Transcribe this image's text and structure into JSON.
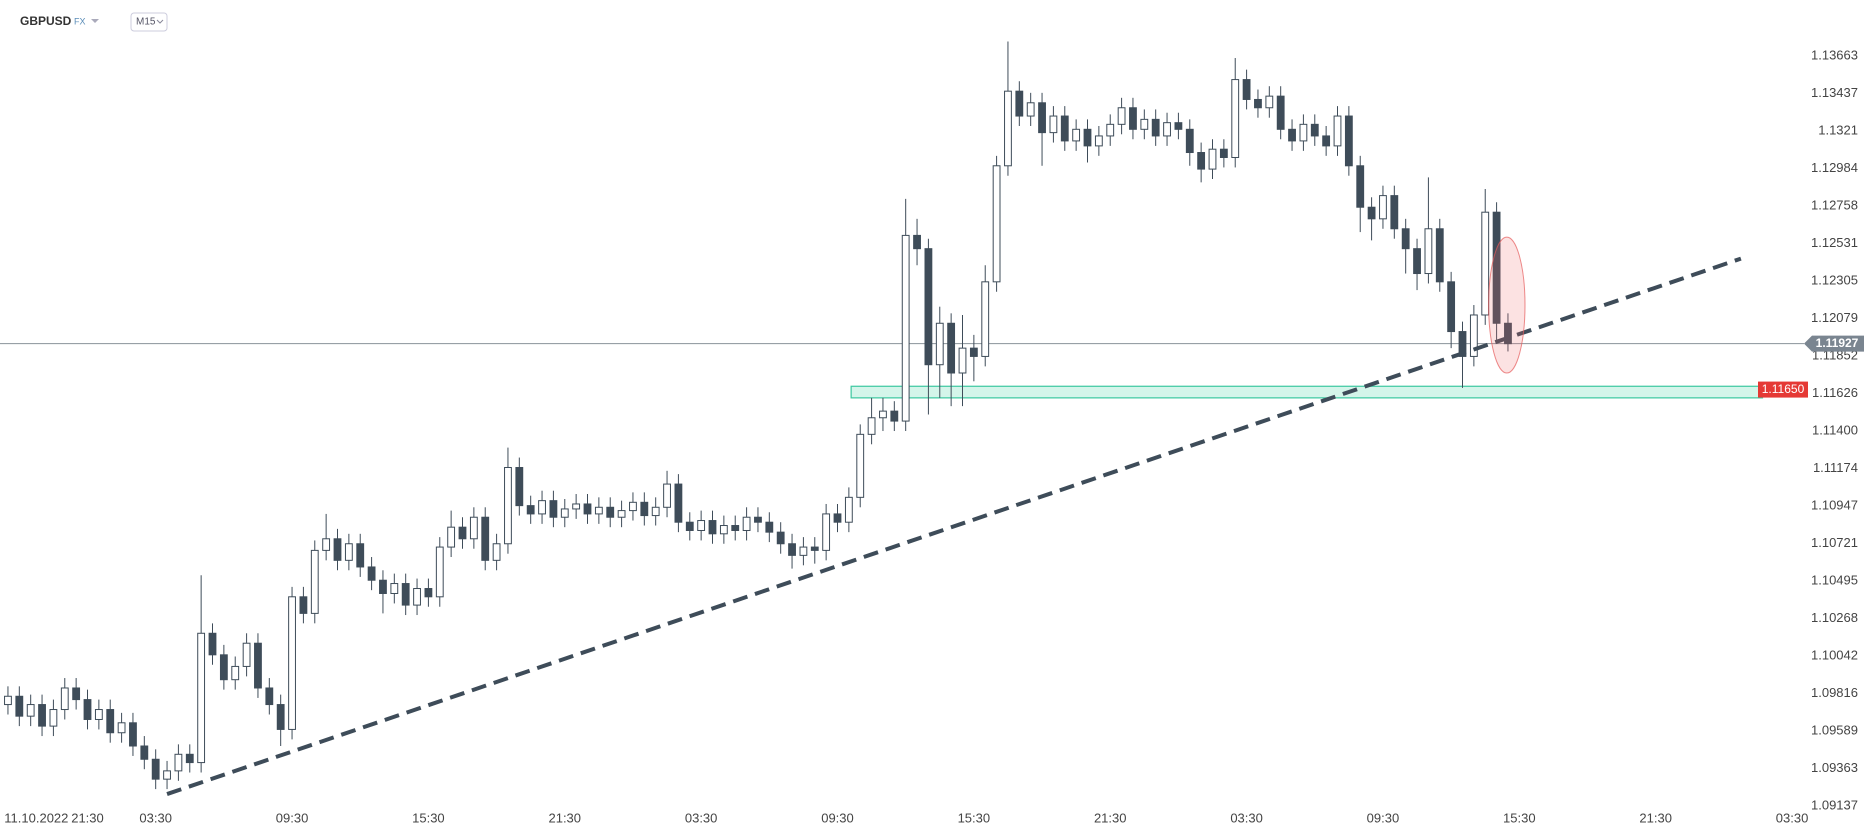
{
  "chart_data": {
    "type": "candlestick",
    "symbol": "GBPUSD",
    "market": "FX",
    "timeframe": "M15",
    "up_color": "#ffffff",
    "down_color": "#3e4c59",
    "line_color": "#3e4c59",
    "open": [
      1.0975,
      1.098,
      1.0968,
      1.0975,
      1.0962,
      1.0972,
      1.0985,
      1.0978,
      1.0966,
      1.0972,
      1.0958,
      1.0964,
      1.095,
      1.0942,
      1.093,
      1.0935,
      1.0945,
      1.094,
      1.1018,
      1.1005,
      1.099,
      1.0998,
      1.1012,
      1.0985,
      1.0975,
      1.096,
      1.104,
      1.103,
      1.1068,
      1.1075,
      1.1062,
      1.1072,
      1.1058,
      1.105,
      1.1042,
      1.1048,
      1.1035,
      1.1045,
      1.104,
      1.107,
      1.1082,
      1.1075,
      1.1088,
      1.1062,
      1.1072,
      1.1118,
      1.1095,
      1.109,
      1.1098,
      1.1088,
      1.1093,
      1.1096,
      1.109,
      1.1094,
      1.1088,
      1.1092,
      1.1097,
      1.1089,
      1.1094,
      1.1108,
      1.1085,
      1.108,
      1.1086,
      1.1078,
      1.1083,
      1.108,
      1.1088,
      1.1085,
      1.1079,
      1.1072,
      1.1065,
      1.107,
      1.1068,
      1.109,
      1.1085,
      1.11,
      1.1138,
      1.1148,
      1.1152,
      1.1146,
      1.1258,
      1.125,
      1.118,
      1.1205,
      1.1175,
      1.119,
      1.1185,
      1.123,
      1.13,
      1.1345,
      1.133,
      1.1338,
      1.132,
      1.133,
      1.1315,
      1.1322,
      1.1312,
      1.1318,
      1.1325,
      1.1335,
      1.1322,
      1.1328,
      1.1318,
      1.1326,
      1.1322,
      1.1308,
      1.1298,
      1.131,
      1.1305,
      1.1352,
      1.134,
      1.1335,
      1.1342,
      1.1322,
      1.1315,
      1.1325,
      1.1318,
      1.1312,
      1.133,
      1.13,
      1.1275,
      1.1268,
      1.1282,
      1.1262,
      1.125,
      1.1235,
      1.1262,
      1.123,
      1.12,
      1.1185,
      1.121,
      1.1272,
      1.1205
    ],
    "high": [
      1.0986,
      1.0986,
      1.0981,
      1.0981,
      1.0978,
      1.0991,
      1.0991,
      1.0984,
      1.0978,
      1.0978,
      1.097,
      1.097,
      1.0956,
      1.0948,
      1.0941,
      1.0951,
      1.0951,
      1.1053,
      1.1024,
      1.1011,
      1.1004,
      1.1018,
      1.1018,
      1.0991,
      1.0981,
      1.1046,
      1.1046,
      1.1074,
      1.109,
      1.1081,
      1.1078,
      1.1078,
      1.1064,
      1.1056,
      1.1054,
      1.1054,
      1.1051,
      1.1051,
      1.1076,
      1.1092,
      1.1088,
      1.1094,
      1.1094,
      1.1078,
      1.113,
      1.1124,
      1.1101,
      1.1104,
      1.1104,
      1.1099,
      1.1102,
      1.1102,
      1.11,
      1.11,
      1.1098,
      1.1103,
      1.1103,
      1.11,
      1.1116,
      1.1114,
      1.1091,
      1.1092,
      1.1092,
      1.1089,
      1.1089,
      1.1094,
      1.1094,
      1.1091,
      1.1085,
      1.1078,
      1.1076,
      1.1076,
      1.1096,
      1.1096,
      1.1106,
      1.1144,
      1.116,
      1.116,
      1.1158,
      1.128,
      1.1268,
      1.1256,
      1.1215,
      1.1211,
      1.121,
      1.1198,
      1.124,
      1.1306,
      1.1375,
      1.1351,
      1.1344,
      1.1344,
      1.1336,
      1.1336,
      1.1328,
      1.1328,
      1.1324,
      1.1331,
      1.1341,
      1.1341,
      1.1334,
      1.1334,
      1.1332,
      1.1332,
      1.1328,
      1.1314,
      1.1316,
      1.1316,
      1.1365,
      1.1358,
      1.1346,
      1.1348,
      1.1348,
      1.1328,
      1.1331,
      1.1331,
      1.1324,
      1.1336,
      1.1336,
      1.1306,
      1.1281,
      1.1288,
      1.1288,
      1.1268,
      1.1256,
      1.1293,
      1.1268,
      1.1236,
      1.1206,
      1.1216,
      1.1286,
      1.1278,
      1.1211
    ],
    "low": [
      1.0969,
      1.0962,
      1.0962,
      1.0956,
      1.0956,
      1.0966,
      1.0972,
      1.096,
      1.096,
      1.0952,
      1.0952,
      1.0944,
      1.0936,
      1.0924,
      1.0924,
      1.0929,
      1.0934,
      1.0934,
      1.0999,
      1.0984,
      1.0984,
      1.0992,
      1.0979,
      1.0969,
      1.095,
      1.0954,
      1.1024,
      1.1024,
      1.1062,
      1.1056,
      1.1056,
      1.1052,
      1.1044,
      1.103,
      1.1036,
      1.1029,
      1.1029,
      1.1034,
      1.1034,
      1.1064,
      1.1069,
      1.1069,
      1.1056,
      1.1056,
      1.1066,
      1.1089,
      1.1084,
      1.1084,
      1.1082,
      1.1082,
      1.1087,
      1.1084,
      1.1084,
      1.1082,
      1.1082,
      1.1086,
      1.1083,
      1.1083,
      1.1088,
      1.1079,
      1.1074,
      1.1074,
      1.1072,
      1.1072,
      1.1074,
      1.1074,
      1.1079,
      1.1073,
      1.1066,
      1.1057,
      1.1059,
      1.106,
      1.1062,
      1.1079,
      1.1079,
      1.1094,
      1.1132,
      1.114,
      1.114,
      1.114,
      1.124,
      1.115,
      1.116,
      1.1155,
      1.1155,
      1.117,
      1.1179,
      1.1224,
      1.1294,
      1.1324,
      1.1324,
      1.13,
      1.1314,
      1.1309,
      1.1309,
      1.1302,
      1.1306,
      1.1312,
      1.1319,
      1.1316,
      1.1316,
      1.1312,
      1.1312,
      1.1316,
      1.13,
      1.129,
      1.1292,
      1.1299,
      1.1299,
      1.1334,
      1.1329,
      1.1329,
      1.1316,
      1.1309,
      1.1309,
      1.1312,
      1.1306,
      1.1306,
      1.1294,
      1.126,
      1.1255,
      1.1262,
      1.1256,
      1.1235,
      1.1225,
      1.1229,
      1.1224,
      1.119,
      1.1166,
      1.1179,
      1.1204,
      1.1195,
      1.1188
    ],
    "close": [
      1.098,
      1.0968,
      1.0975,
      1.0962,
      1.0972,
      1.0985,
      1.0978,
      1.0966,
      1.0972,
      1.0958,
      1.0964,
      1.095,
      1.0942,
      1.093,
      1.0935,
      1.0945,
      1.094,
      1.1018,
      1.1005,
      1.099,
      1.0998,
      1.1012,
      1.0985,
      1.0975,
      1.096,
      1.104,
      1.103,
      1.1068,
      1.1075,
      1.1062,
      1.1072,
      1.1058,
      1.105,
      1.1042,
      1.1048,
      1.1035,
      1.1045,
      1.104,
      1.107,
      1.1082,
      1.1075,
      1.1088,
      1.1062,
      1.1072,
      1.1118,
      1.1095,
      1.109,
      1.1098,
      1.1088,
      1.1093,
      1.1096,
      1.109,
      1.1094,
      1.1088,
      1.1092,
      1.1097,
      1.1089,
      1.1094,
      1.1108,
      1.1085,
      1.108,
      1.1086,
      1.1078,
      1.1083,
      1.108,
      1.1088,
      1.1085,
      1.1079,
      1.1072,
      1.1065,
      1.107,
      1.1068,
      1.109,
      1.1085,
      1.11,
      1.1138,
      1.1148,
      1.1152,
      1.1146,
      1.1258,
      1.125,
      1.118,
      1.1205,
      1.1175,
      1.119,
      1.1185,
      1.123,
      1.13,
      1.1345,
      1.133,
      1.1338,
      1.132,
      1.133,
      1.1315,
      1.1322,
      1.1312,
      1.1318,
      1.1325,
      1.1335,
      1.1322,
      1.1328,
      1.1318,
      1.1326,
      1.1322,
      1.1308,
      1.1298,
      1.131,
      1.1305,
      1.1352,
      1.134,
      1.1335,
      1.1342,
      1.1322,
      1.1315,
      1.1325,
      1.1318,
      1.1312,
      1.133,
      1.13,
      1.1275,
      1.1268,
      1.1282,
      1.1262,
      1.125,
      1.1235,
      1.1262,
      1.123,
      1.12,
      1.1185,
      1.121,
      1.1272,
      1.1205,
      1.11927
    ],
    "xlim": [
      -0.7,
      157.7
    ],
    "ylim": [
      1.0912,
      1.14
    ],
    "xticks": [
      {
        "value": 2.5,
        "label": "11.10.2022"
      },
      {
        "value": 7,
        "label": "21:30"
      },
      {
        "value": 13,
        "label": "03:30"
      },
      {
        "value": 25,
        "label": "09:30"
      },
      {
        "value": 37,
        "label": "15:30"
      },
      {
        "value": 49,
        "label": "21:30"
      },
      {
        "value": 61,
        "label": "03:30"
      },
      {
        "value": 73,
        "label": "09:30"
      },
      {
        "value": 85,
        "label": "15:30"
      },
      {
        "value": 97,
        "label": "21:30"
      },
      {
        "value": 109,
        "label": "03:30"
      },
      {
        "value": 121,
        "label": "09:30"
      },
      {
        "value": 133,
        "label": "15:30"
      },
      {
        "value": 145,
        "label": "21:30"
      },
      {
        "value": 157,
        "label": "03:30"
      }
    ],
    "yticks": [
      1.13663,
      1.13437,
      1.1321,
      1.12984,
      1.12758,
      1.12531,
      1.12305,
      1.12079,
      1.11852,
      1.11626,
      {
        "value": 1.114,
        "label": "1.11400"
      },
      1.11174,
      1.10947,
      1.10721,
      1.10495,
      1.10268,
      1.10042,
      1.09816,
      1.09589,
      1.09363,
      1.09137
    ],
    "last_price": 1.11927,
    "level": {
      "value": 1.1165,
      "label": "1.11650"
    },
    "zone": {
      "x": [
        74.2,
        154.4
      ],
      "y": [
        1.116,
        1.1167
      ]
    },
    "trendline": {
      "x": [
        14,
        152.5
      ],
      "y": [
        1.0921,
        1.1244
      ]
    },
    "highlight": {
      "x": [
        130.3,
        133.5
      ],
      "y": [
        1.1175,
        1.1257
      ]
    }
  }
}
